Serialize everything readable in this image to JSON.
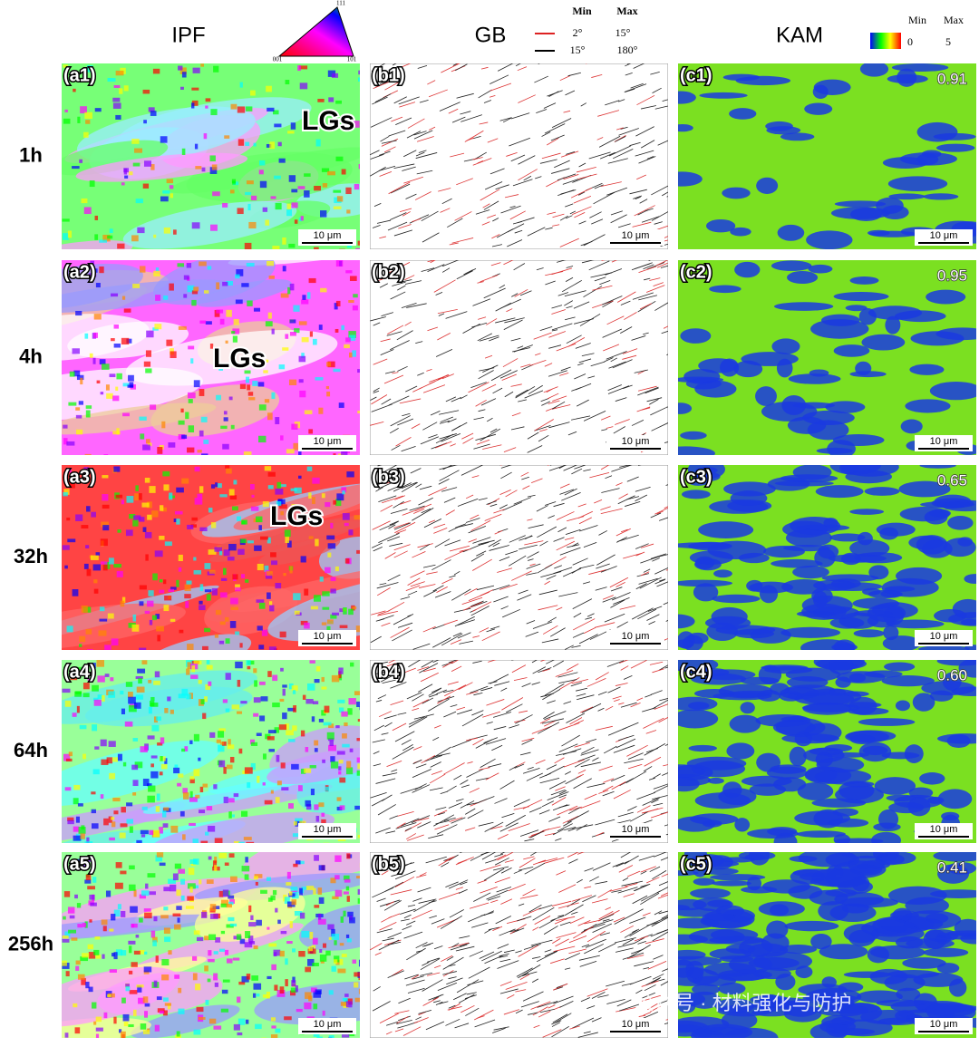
{
  "header": {
    "columns": [
      "IPF",
      "GB",
      "KAM"
    ],
    "ipf_key": {
      "top": "111",
      "left": "001",
      "right": "101"
    },
    "gb_key": {
      "min_label": "Min",
      "max_label": "Max",
      "rows": [
        [
          "2°",
          "15°"
        ],
        [
          "15°",
          "180°"
        ]
      ]
    },
    "kam_key": {
      "min_label": "Min",
      "max_label": "Max",
      "min": "0",
      "max": "5"
    }
  },
  "rows": [
    {
      "label": "1h",
      "panels": [
        {
          "label": "(a1)",
          "annotation": "LGs",
          "scale_bar": "10 μm"
        },
        {
          "label": "(b1)",
          "scale_bar": "10 μm"
        },
        {
          "label": "(c1)",
          "kam": "0.91",
          "scale_bar": "10 μm"
        }
      ]
    },
    {
      "label": "4h",
      "panels": [
        {
          "label": "(a2)",
          "annotation": "LGs",
          "scale_bar": "10 μm"
        },
        {
          "label": "(b2)",
          "scale_bar": "10 μm"
        },
        {
          "label": "(c2)",
          "kam": "0.95",
          "scale_bar": "10 μm"
        }
      ]
    },
    {
      "label": "32h",
      "panels": [
        {
          "label": "(a3)",
          "annotation": "LGs",
          "scale_bar": "10 μm"
        },
        {
          "label": "(b3)",
          "scale_bar": "10 μm"
        },
        {
          "label": "(c3)",
          "kam": "0.65",
          "scale_bar": "10 μm"
        }
      ]
    },
    {
      "label": "64h",
      "panels": [
        {
          "label": "(a4)",
          "scale_bar": "10 μm"
        },
        {
          "label": "(b4)",
          "scale_bar": "10 μm"
        },
        {
          "label": "(c4)",
          "kam": "0.60",
          "scale_bar": "10 μm"
        }
      ]
    },
    {
      "label": "256h",
      "panels": [
        {
          "label": "(a5)",
          "scale_bar": "10 μm"
        },
        {
          "label": "(b5)",
          "scale_bar": "10 μm"
        },
        {
          "label": "(c5)",
          "kam": "0.41",
          "scale_bar": "10 μm"
        }
      ]
    }
  ],
  "watermark": "公众号 · 材料强化与防护"
}
